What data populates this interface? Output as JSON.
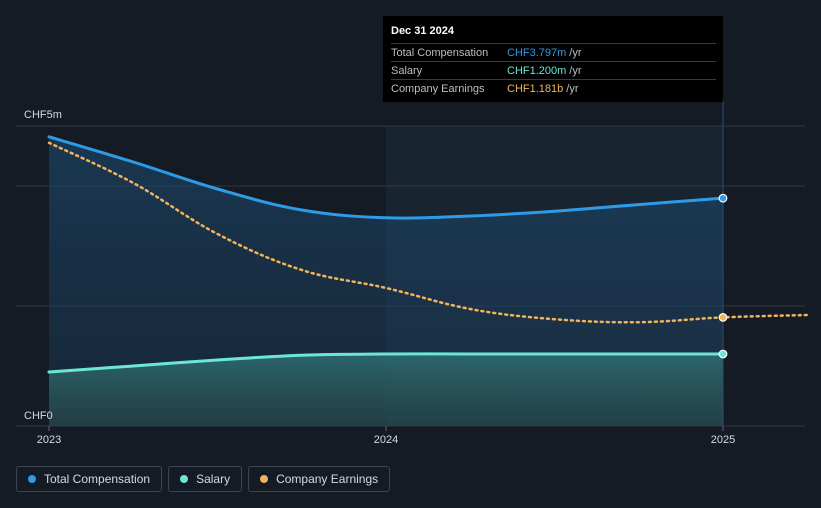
{
  "tooltip": {
    "date": "Dec 31 2024",
    "rows": [
      {
        "label": "Total Compensation",
        "value": "CHF3.797m",
        "unit": "/yr",
        "color": "#2d9be6"
      },
      {
        "label": "Salary",
        "value": "CHF1.200m",
        "unit": "/yr",
        "color": "#6ce6d8"
      },
      {
        "label": "Company Earnings",
        "value": "CHF1.181b",
        "unit": "/yr",
        "color": "#f2b45a"
      }
    ]
  },
  "legend": [
    {
      "label": "Total Compensation",
      "color": "#2d9be6"
    },
    {
      "label": "Salary",
      "color": "#6ce6d8"
    },
    {
      "label": "Company Earnings",
      "color": "#f2b45a"
    }
  ],
  "chart_data": {
    "type": "area",
    "title": "",
    "xlabel": "",
    "ylabel": "",
    "ylim": [
      0,
      5
    ],
    "yunit": "CHF m",
    "y_ticks": [
      {
        "value": 5,
        "label": "CHF5m"
      },
      {
        "value": 0,
        "label": "CHF0"
      }
    ],
    "x_ticks": [
      {
        "value": 2023.0,
        "label": "2023"
      },
      {
        "value": 2024.0,
        "label": "2024"
      },
      {
        "value": 2025.0,
        "label": "2025"
      }
    ],
    "xlim": [
      2022.9,
      2025.25
    ],
    "forecast_start": 2024.0,
    "series": [
      {
        "name": "Total Compensation",
        "color": "#2d9be6",
        "style": "solid-area",
        "x": [
          2023.0,
          2023.25,
          2023.5,
          2023.75,
          2024.0,
          2024.25,
          2024.5,
          2024.75,
          2025.0
        ],
        "values": [
          4.82,
          4.4,
          3.95,
          3.6,
          3.47,
          3.5,
          3.58,
          3.69,
          3.797
        ]
      },
      {
        "name": "Salary",
        "color": "#6ce6d8",
        "style": "solid-area",
        "x": [
          2023.0,
          2023.25,
          2023.5,
          2023.75,
          2024.0,
          2024.25,
          2024.5,
          2024.75,
          2025.0
        ],
        "values": [
          0.9,
          1.0,
          1.1,
          1.18,
          1.2,
          1.2,
          1.2,
          1.2,
          1.2
        ]
      },
      {
        "name": "Company Earnings",
        "color": "#f2b45a",
        "style": "dotted",
        "x": [
          2023.0,
          2023.25,
          2023.5,
          2023.75,
          2024.0,
          2024.25,
          2024.5,
          2024.75,
          2025.0,
          2025.25
        ],
        "values": [
          4.72,
          4.05,
          3.2,
          2.6,
          2.3,
          1.95,
          1.78,
          1.73,
          1.81,
          1.85
        ],
        "unit_note": "scaled; tooltip shows CHF1.181b"
      }
    ]
  }
}
